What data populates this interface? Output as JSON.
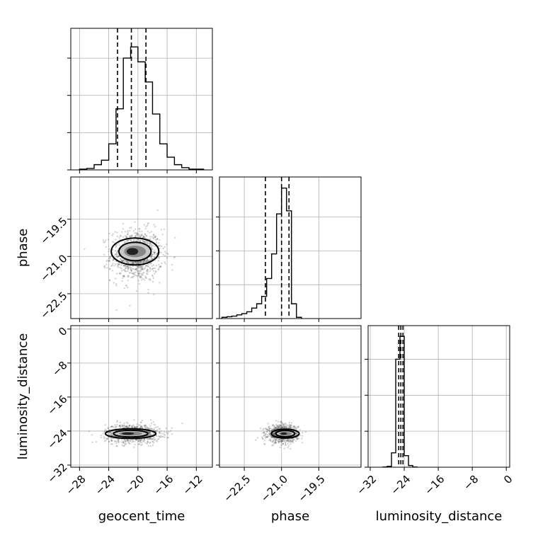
{
  "chart_data": {
    "type": "corner",
    "parameters": [
      "geocent_time",
      "phase",
      "luminosity_distance"
    ],
    "axes": {
      "geocent_time": {
        "range": [
          -29.2,
          -9.8
        ],
        "ticks": [
          -28,
          -24,
          -20,
          -16,
          -12
        ],
        "tick_labels": [
          "−28",
          "−24",
          "−20",
          "−16",
          "−12"
        ]
      },
      "phase": {
        "range": [
          -23.5,
          -17.8
        ],
        "ticks": [
          -22.5,
          -21.0,
          -19.5
        ],
        "tick_labels": [
          "−22.5",
          "−21.0",
          "−19.5"
        ]
      },
      "luminosity_distance": {
        "range": [
          -32.5,
          0.8
        ],
        "ticks": [
          -32,
          -24,
          -16,
          -8,
          0
        ],
        "tick_labels": [
          "−32",
          "−24",
          "−16",
          "−8",
          "0"
        ]
      }
    },
    "y_tick_labels": {
      "phase": [
        "−19.5",
        "−21.0",
        "−22.5"
      ],
      "luminosity_distance": [
        "0",
        "−8",
        "−16",
        "−24",
        "−32"
      ]
    },
    "histograms": [
      {
        "param": "geocent_time",
        "bin_edges": [
          -28,
          -27,
          -26,
          -25,
          -24,
          -23,
          -22,
          -21,
          -20,
          -19,
          -18,
          -17,
          -16,
          -15,
          -14,
          -13,
          -12,
          -11
        ],
        "counts": [
          1,
          2,
          7,
          13,
          35,
          82,
          150,
          165,
          145,
          118,
          75,
          35,
          17,
          7,
          3,
          1,
          1
        ],
        "quantiles": [
          -22.8,
          -20.9,
          -18.9
        ],
        "ymax": 190,
        "yticks": [
          0,
          50,
          100,
          150
        ]
      },
      {
        "param": "phase",
        "bin_edges": [
          -23.4,
          -23.2,
          -23.0,
          -22.8,
          -22.6,
          -22.4,
          -22.2,
          -22.0,
          -21.8,
          -21.6,
          -21.4,
          -21.2,
          -21.0,
          -20.8,
          -20.6,
          -20.4,
          -20.2
        ],
        "counts": [
          2,
          3,
          4,
          6,
          8,
          11,
          17,
          24,
          36,
          65,
          105,
          170,
          212,
          175,
          24,
          2
        ],
        "quantiles": [
          -21.65,
          -21.0,
          -20.7
        ],
        "ymax": 230,
        "yticks": [
          0,
          55,
          110,
          165
        ]
      },
      {
        "param": "luminosity_distance",
        "bin_edges": [
          -29,
          -28,
          -27,
          -26,
          -25,
          -24,
          -23,
          -22,
          -21
        ],
        "counts": [
          1,
          4,
          60,
          450,
          545,
          48,
          7,
          1
        ],
        "quantiles": [
          -25.3,
          -24.8,
          -24.3
        ],
        "ymax": 590,
        "yticks": [
          0,
          150,
          300,
          450
        ]
      }
    ],
    "pairs": [
      {
        "x": "geocent_time",
        "y": "phase",
        "center": [
          -20.2,
          -20.95
        ],
        "spread": [
          3.2,
          0.62
        ],
        "core": [
          -20.4,
          -20.8
        ]
      },
      {
        "x": "geocent_time",
        "y": "luminosity_distance",
        "center": [
          -20.7,
          -24.6
        ],
        "spread": [
          3.4,
          1.3
        ],
        "core": [
          -21.0,
          -24.6
        ]
      },
      {
        "x": "phase",
        "y": "luminosity_distance",
        "center": [
          -20.95,
          -24.6
        ],
        "spread": [
          0.55,
          1.2
        ],
        "core": [
          -20.85,
          -24.6
        ]
      }
    ],
    "grid": true,
    "legend": "none"
  }
}
